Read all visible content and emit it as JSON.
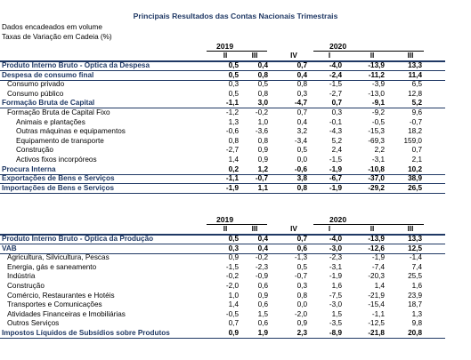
{
  "title": "Principais Resultados das Contas Nacionais Trimestrais",
  "subtitle1": "Dados encadeados em volume",
  "subtitle2": "Taxas de Variação em Cadeia (%)",
  "table1": {
    "years": [
      "2019",
      "2020"
    ],
    "quarters": [
      "II",
      "III",
      "IV",
      "I",
      "II",
      "III"
    ],
    "rows": [
      {
        "label": "Produto Interno Bruto - Óptica da Despesa",
        "values": [
          "0,5",
          "0,4",
          "0,7",
          "-4,0",
          "-13,9",
          "13,3"
        ],
        "style": "bold"
      },
      {
        "label": "Despesa de consumo final",
        "values": [
          "0,5",
          "0,8",
          "0,4",
          "-2,4",
          "-11,2",
          "11,4"
        ],
        "style": "bold"
      },
      {
        "label": "Consumo privado",
        "values": [
          "0,3",
          "0,5",
          "0,8",
          "-1,5",
          "-3,9",
          "6,5"
        ],
        "style": "ind1"
      },
      {
        "label": "Consumo público",
        "values": [
          "0,5",
          "0,8",
          "0,3",
          "-2,7",
          "-13,0",
          "12,8"
        ],
        "style": "ind1"
      },
      {
        "label": "Formação Bruta de Capital",
        "values": [
          "-1,1",
          "3,0",
          "-4,7",
          "0,7",
          "-9,1",
          "5,2"
        ],
        "style": "bold"
      },
      {
        "label": "Formação Bruta de Capital Fixo",
        "values": [
          "-1,2",
          "-0,2",
          "0,7",
          "0,3",
          "-9,2",
          "9,6"
        ],
        "style": "ind1"
      },
      {
        "label": "Animais e plantações",
        "values": [
          "1,3",
          "1,0",
          "0,4",
          "-0,1",
          "-0,5",
          "-0,7"
        ],
        "style": "ind2"
      },
      {
        "label": "Outras máquinas e equipamentos",
        "values": [
          "-0,6",
          "-3,6",
          "3,2",
          "-4,3",
          "-15,3",
          "18,2"
        ],
        "style": "ind2"
      },
      {
        "label": "Equipamento de transporte",
        "values": [
          "0,8",
          "0,8",
          "-3,4",
          "5,2",
          "-69,3",
          "159,0"
        ],
        "style": "ind2"
      },
      {
        "label": "Construção",
        "values": [
          "-2,7",
          "0,9",
          "0,5",
          "2,4",
          "2,2",
          "0,7"
        ],
        "style": "ind2"
      },
      {
        "label": "Activos fixos incorpóreos",
        "values": [
          "1,4",
          "0,9",
          "0,0",
          "-1,5",
          "-3,1",
          "2,1"
        ],
        "style": "ind2"
      },
      {
        "label": "Procura Interna",
        "values": [
          "0,2",
          "1,2",
          "-0,6",
          "-1,9",
          "-10,8",
          "10,2"
        ],
        "style": "bold"
      },
      {
        "label": "Exportações de Bens e Serviços",
        "values": [
          "-1,1",
          "-0,7",
          "3,8",
          "-6,7",
          "-37,0",
          "38,9"
        ],
        "style": "bold"
      },
      {
        "label": "Importações de Bens e Serviços",
        "values": [
          "-1,9",
          "1,1",
          "0,8",
          "-1,9",
          "-29,2",
          "26,5"
        ],
        "style": "bold"
      }
    ]
  },
  "table2": {
    "years": [
      "2019",
      "2020"
    ],
    "quarters": [
      "II",
      "III",
      "IV",
      "I",
      "II",
      "III"
    ],
    "rows": [
      {
        "label": "Produto Interno Bruto - Óptica da Produção",
        "values": [
          "0,5",
          "0,4",
          "0,7",
          "-4,0",
          "-13,9",
          "13,3"
        ],
        "style": "bold"
      },
      {
        "label": "VAB",
        "values": [
          "0,3",
          "0,4",
          "0,6",
          "-3,0",
          "-12,6",
          "12,5"
        ],
        "style": "bold"
      },
      {
        "label": "Agricultura, Silvicultura, Pescas",
        "values": [
          "0,9",
          "-0,2",
          "-1,3",
          "-2,3",
          "-1,9",
          "-1,4"
        ],
        "style": "ind1"
      },
      {
        "label": "Energia, gás e saneamento",
        "values": [
          "-1,5",
          "-2,3",
          "0,5",
          "-3,1",
          "-7,4",
          "7,4"
        ],
        "style": "ind1"
      },
      {
        "label": "Indústria",
        "values": [
          "-0,2",
          "-0,9",
          "-0,7",
          "-1,9",
          "-20,3",
          "25,5"
        ],
        "style": "ind1"
      },
      {
        "label": "Construção",
        "values": [
          "-2,0",
          "0,6",
          "0,3",
          "1,6",
          "1,4",
          "1,6"
        ],
        "style": "ind1"
      },
      {
        "label": "Comércio, Restaurantes e Hotéis",
        "values": [
          "1,0",
          "0,9",
          "0,8",
          "-7,5",
          "-21,9",
          "23,9"
        ],
        "style": "ind1"
      },
      {
        "label": "Transportes e Comunicações",
        "values": [
          "1,4",
          "0,6",
          "0,0",
          "-3,0",
          "-15,4",
          "18,7"
        ],
        "style": "ind1"
      },
      {
        "label": "Atividades Financeiras e Imobiliárias",
        "values": [
          "-0,5",
          "1,5",
          "-2,0",
          "1,5",
          "-1,1",
          "1,3"
        ],
        "style": "ind1"
      },
      {
        "label": "Outros Serviços",
        "values": [
          "0,7",
          "0,6",
          "0,9",
          "-3,5",
          "-12,5",
          "9,8"
        ],
        "style": "ind1"
      },
      {
        "label": "Impostos Líquidos de Subsídios sobre Produtos",
        "values": [
          "0,9",
          "1,9",
          "2,3",
          "-8,9",
          "-21,8",
          "20,8"
        ],
        "style": "bold"
      }
    ]
  }
}
